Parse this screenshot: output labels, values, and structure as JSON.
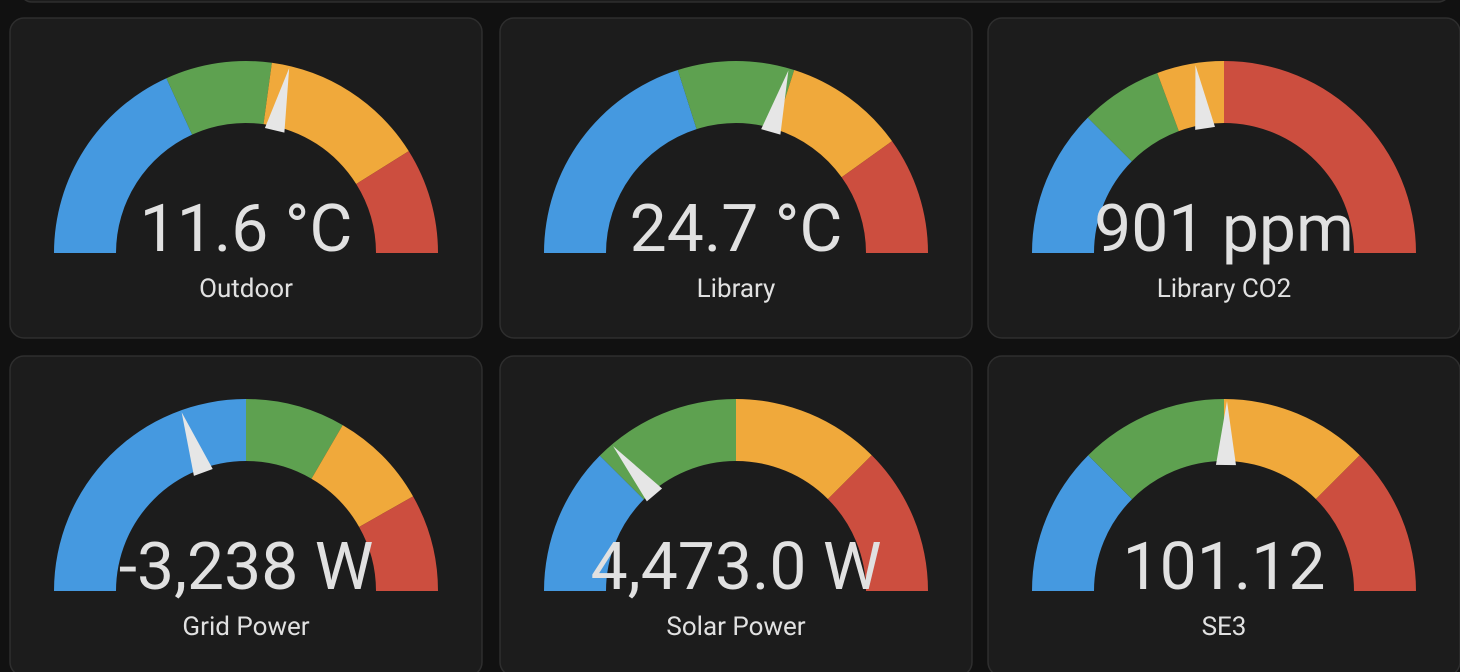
{
  "cards": [
    {
      "value": "11.6 °C",
      "name": "Outdoor",
      "needle": 0.573,
      "segments": [
        {
          "color": "#4599e0",
          "to": 0.364
        },
        {
          "color": "#5ea150",
          "to": 0.543
        },
        {
          "color": "#f0a93b",
          "to": 0.822
        },
        {
          "color": "#cc4e3f",
          "to": 1
        }
      ]
    },
    {
      "value": "24.7 °C",
      "name": "Library",
      "needle": 0.589,
      "segments": [
        {
          "color": "#4599e0",
          "to": 0.402
        },
        {
          "color": "#5ea150",
          "to": 0.598
        },
        {
          "color": "#f0a93b",
          "to": 0.802
        },
        {
          "color": "#cc4e3f",
          "to": 1
        }
      ]
    },
    {
      "value": "901 ppm",
      "name": "Library CO2",
      "needle": 0.452,
      "segments": [
        {
          "color": "#4599e0",
          "to": 0.249
        },
        {
          "color": "#5ea150",
          "to": 0.387
        },
        {
          "color": "#f0a93b",
          "to": 0.5
        },
        {
          "color": "#cc4e3f",
          "to": 1
        }
      ]
    },
    {
      "value": "-3,238 W",
      "name": "Grid Power",
      "needle": 0.39,
      "segments": [
        {
          "color": "#4599e0",
          "to": 0.5
        },
        {
          "color": "#5ea150",
          "to": 0.668
        },
        {
          "color": "#f0a93b",
          "to": 0.836
        },
        {
          "color": "#cc4e3f",
          "to": 1
        }
      ]
    },
    {
      "value": "4,473.0 W",
      "name": "Solar Power",
      "needle": 0.276,
      "segments": [
        {
          "color": "#4599e0",
          "to": 0.249
        },
        {
          "color": "#5ea150",
          "to": 0.5
        },
        {
          "color": "#f0a93b",
          "to": 0.75
        },
        {
          "color": "#cc4e3f",
          "to": 1
        }
      ]
    },
    {
      "value": "101.12",
      "name": "SE3",
      "needle": 0.505,
      "segments": [
        {
          "color": "#4599e0",
          "to": 0.25
        },
        {
          "color": "#5ea150",
          "to": 0.5
        },
        {
          "color": "#f0a93b",
          "to": 0.75
        },
        {
          "color": "#cc4e3f",
          "to": 1
        }
      ]
    }
  ]
}
